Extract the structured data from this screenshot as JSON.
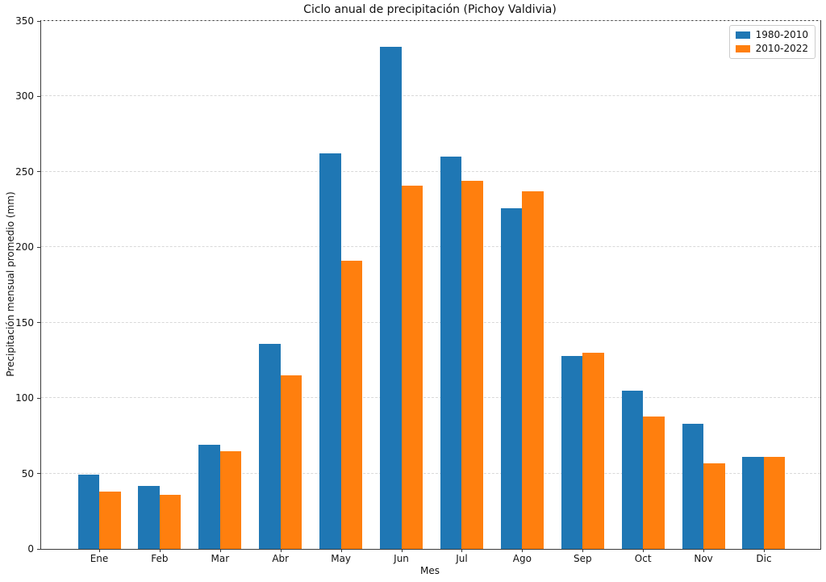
{
  "chart_data": {
    "type": "bar",
    "title": "Ciclo anual de precipitación (Pichoy Valdivia)",
    "xlabel": "Mes",
    "ylabel": "Precipitación mensual promedio (mm)",
    "categories": [
      "Ene",
      "Feb",
      "Mar",
      "Abr",
      "May",
      "Jun",
      "Jul",
      "Ago",
      "Sep",
      "Oct",
      "Nov",
      "Dic"
    ],
    "series": [
      {
        "name": "1980-2010",
        "color": "#1f77b4",
        "values": [
          49,
          42,
          69,
          136,
          262,
          333,
          260,
          226,
          128,
          105,
          83,
          61
        ]
      },
      {
        "name": "2010-2022",
        "color": "#ff7f0e",
        "values": [
          38,
          36,
          65,
          115,
          191,
          241,
          244,
          237,
          130,
          88,
          57,
          61
        ]
      }
    ],
    "ylim": [
      0,
      350
    ],
    "yticks": [
      0,
      50,
      100,
      150,
      200,
      250,
      300,
      350
    ],
    "grid": "horizontal-dashed",
    "grid_color": "#d9d9d9",
    "axis_color": "#3a3a3a",
    "legend_position": "upper-right"
  }
}
